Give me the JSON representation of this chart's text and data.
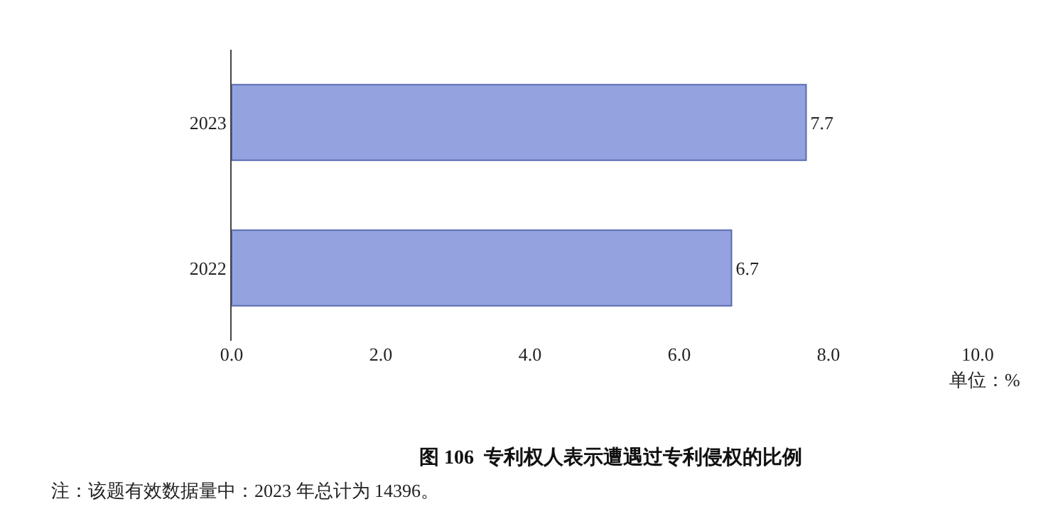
{
  "chart_data": {
    "type": "bar",
    "orientation": "horizontal",
    "title": "图 106  专利权人表示遭遇过专利侵权的比例",
    "categories": [
      "2023",
      "2022"
    ],
    "values": [
      7.7,
      6.7
    ],
    "color": "#94a3df",
    "data_labels": true,
    "xlim": [
      0,
      10
    ],
    "xticks": [
      {
        "value": 0,
        "label": "0.0"
      },
      {
        "value": 2,
        "label": "2.0"
      },
      {
        "value": 4,
        "label": "4.0"
      },
      {
        "value": 6,
        "label": "6.0"
      },
      {
        "value": 8,
        "label": "8.0"
      },
      {
        "value": 10,
        "label": "10.0"
      }
    ],
    "grid": false,
    "legend": false,
    "annotations": [
      "单位：%",
      "注：该题有效数据量中：2023 年总计为 14396。"
    ]
  }
}
